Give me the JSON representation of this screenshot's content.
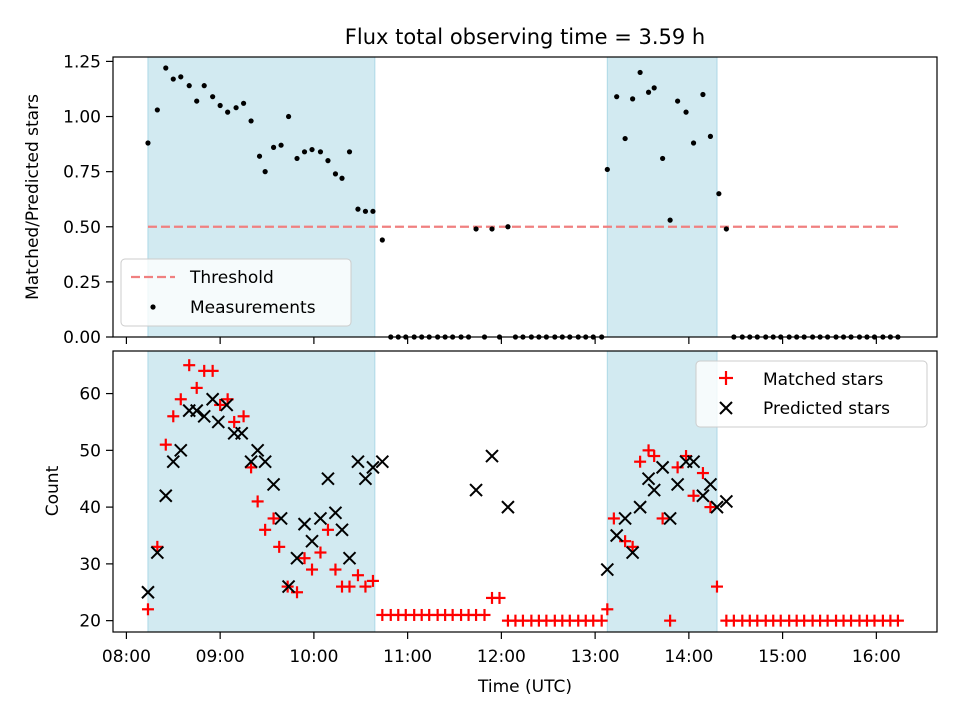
{
  "title": "Flux total observing time = 3.59 h",
  "x_axis": {
    "label": "Time (UTC)",
    "range_hours": [
      7.857,
      16.647
    ],
    "ticks": [
      {
        "value": 8,
        "label": "08:00"
      },
      {
        "value": 9,
        "label": "09:00"
      },
      {
        "value": 10,
        "label": "10:00"
      },
      {
        "value": 11,
        "label": "11:00"
      },
      {
        "value": 12,
        "label": "12:00"
      },
      {
        "value": 13,
        "label": "13:00"
      },
      {
        "value": 14,
        "label": "14:00"
      },
      {
        "value": 15,
        "label": "15:00"
      },
      {
        "value": 16,
        "label": "16:00"
      }
    ]
  },
  "colors": {
    "span": "#add8e6",
    "threshold": "#f08080",
    "measurement": "#000000",
    "matched": "#ff0000",
    "predicted": "#000000"
  },
  "chart_data": [
    {
      "type": "scatter",
      "ylabel": "Matched/Predicted stars",
      "ylim": [
        0,
        1.27
      ],
      "yticks": [
        "0.00",
        "0.25",
        "0.50",
        "0.75",
        "1.00",
        "1.25"
      ],
      "ytick_values": [
        0,
        0.25,
        0.5,
        0.75,
        1.0,
        1.25
      ],
      "shaded_spans": [
        [
          8.23,
          10.65
        ],
        [
          13.13,
          14.3
        ]
      ],
      "threshold": {
        "name": "Threshold",
        "value": 0.5,
        "x_range": [
          8.23,
          16.25
        ]
      },
      "legend": [
        "Threshold",
        "Measurements"
      ],
      "legend_position": "lower-left",
      "series": [
        {
          "name": "Measurements",
          "points": [
            [
              8.23,
              0.88
            ],
            [
              8.33,
              1.03
            ],
            [
              8.42,
              1.22
            ],
            [
              8.5,
              1.17
            ],
            [
              8.58,
              1.18
            ],
            [
              8.67,
              1.14
            ],
            [
              8.75,
              1.07
            ],
            [
              8.83,
              1.14
            ],
            [
              8.92,
              1.09
            ],
            [
              9.0,
              1.05
            ],
            [
              9.08,
              1.02
            ],
            [
              9.17,
              1.04
            ],
            [
              9.25,
              1.06
            ],
            [
              9.33,
              0.98
            ],
            [
              9.42,
              0.82
            ],
            [
              9.48,
              0.75
            ],
            [
              9.57,
              0.86
            ],
            [
              9.65,
              0.87
            ],
            [
              9.73,
              1.0
            ],
            [
              9.82,
              0.81
            ],
            [
              9.9,
              0.84
            ],
            [
              9.98,
              0.85
            ],
            [
              10.07,
              0.84
            ],
            [
              10.15,
              0.8
            ],
            [
              10.23,
              0.74
            ],
            [
              10.3,
              0.72
            ],
            [
              10.38,
              0.84
            ],
            [
              10.47,
              0.58
            ],
            [
              10.55,
              0.57
            ],
            [
              10.63,
              0.57
            ],
            [
              10.73,
              0.44
            ],
            [
              10.82,
              0.0
            ],
            [
              10.9,
              0.0
            ],
            [
              10.98,
              0.0
            ],
            [
              11.07,
              0.0
            ],
            [
              11.15,
              0.0
            ],
            [
              11.23,
              0.0
            ],
            [
              11.32,
              0.0
            ],
            [
              11.4,
              0.0
            ],
            [
              11.48,
              0.0
            ],
            [
              11.57,
              0.0
            ],
            [
              11.65,
              0.0
            ],
            [
              11.73,
              0.49
            ],
            [
              11.82,
              0.0
            ],
            [
              11.9,
              0.49
            ],
            [
              11.98,
              0.0
            ],
            [
              12.07,
              0.5
            ],
            [
              12.15,
              0.0
            ],
            [
              12.23,
              0.0
            ],
            [
              12.32,
              0.0
            ],
            [
              12.4,
              0.0
            ],
            [
              12.48,
              0.0
            ],
            [
              12.57,
              0.0
            ],
            [
              12.65,
              0.0
            ],
            [
              12.73,
              0.0
            ],
            [
              12.82,
              0.0
            ],
            [
              12.9,
              0.0
            ],
            [
              12.98,
              0.0
            ],
            [
              13.07,
              0.0
            ],
            [
              13.13,
              0.76
            ],
            [
              13.23,
              1.09
            ],
            [
              13.32,
              0.9
            ],
            [
              13.4,
              1.08
            ],
            [
              13.48,
              1.2
            ],
            [
              13.57,
              1.11
            ],
            [
              13.63,
              1.13
            ],
            [
              13.72,
              0.81
            ],
            [
              13.8,
              0.53
            ],
            [
              13.88,
              1.07
            ],
            [
              13.97,
              1.02
            ],
            [
              14.05,
              0.88
            ],
            [
              14.15,
              1.1
            ],
            [
              14.23,
              0.91
            ],
            [
              14.32,
              0.65
            ],
            [
              14.4,
              0.49
            ],
            [
              14.48,
              0.0
            ],
            [
              14.57,
              0.0
            ],
            [
              14.65,
              0.0
            ],
            [
              14.73,
              0.0
            ],
            [
              14.82,
              0.0
            ],
            [
              14.9,
              0.0
            ],
            [
              14.98,
              0.0
            ],
            [
              15.07,
              0.0
            ],
            [
              15.15,
              0.0
            ],
            [
              15.23,
              0.0
            ],
            [
              15.32,
              0.0
            ],
            [
              15.4,
              0.0
            ],
            [
              15.48,
              0.0
            ],
            [
              15.57,
              0.0
            ],
            [
              15.65,
              0.0
            ],
            [
              15.73,
              0.0
            ],
            [
              15.82,
              0.0
            ],
            [
              15.9,
              0.0
            ],
            [
              15.98,
              0.0
            ],
            [
              16.07,
              0.0
            ],
            [
              16.15,
              0.0
            ],
            [
              16.23,
              0.0
            ]
          ]
        }
      ]
    },
    {
      "type": "scatter",
      "ylabel": "Count",
      "ylim": [
        18,
        67.5
      ],
      "yticks": [
        "20",
        "30",
        "40",
        "50",
        "60"
      ],
      "ytick_values": [
        20,
        30,
        40,
        50,
        60
      ],
      "shaded_spans": [
        [
          8.23,
          10.65
        ],
        [
          13.13,
          14.3
        ]
      ],
      "legend": [
        "Matched stars",
        "Predicted stars"
      ],
      "legend_position": "upper-right",
      "series": [
        {
          "name": "Matched stars",
          "points": [
            [
              8.23,
              22
            ],
            [
              8.33,
              33
            ],
            [
              8.42,
              51
            ],
            [
              8.5,
              56
            ],
            [
              8.58,
              59
            ],
            [
              8.67,
              65
            ],
            [
              8.75,
              61
            ],
            [
              8.83,
              64
            ],
            [
              8.92,
              64
            ],
            [
              9.0,
              58
            ],
            [
              9.08,
              59
            ],
            [
              9.15,
              55
            ],
            [
              9.25,
              56
            ],
            [
              9.33,
              47
            ],
            [
              9.4,
              41
            ],
            [
              9.48,
              36
            ],
            [
              9.57,
              38
            ],
            [
              9.63,
              33
            ],
            [
              9.72,
              26
            ],
            [
              9.82,
              25
            ],
            [
              9.9,
              31
            ],
            [
              9.98,
              29
            ],
            [
              10.07,
              32
            ],
            [
              10.15,
              36
            ],
            [
              10.23,
              29
            ],
            [
              10.3,
              26
            ],
            [
              10.38,
              26
            ],
            [
              10.47,
              28
            ],
            [
              10.55,
              26
            ],
            [
              10.63,
              27
            ],
            [
              10.73,
              21
            ],
            [
              10.82,
              21
            ],
            [
              10.9,
              21
            ],
            [
              10.98,
              21
            ],
            [
              11.07,
              21
            ],
            [
              11.15,
              21
            ],
            [
              11.23,
              21
            ],
            [
              11.32,
              21
            ],
            [
              11.4,
              21
            ],
            [
              11.48,
              21
            ],
            [
              11.57,
              21
            ],
            [
              11.65,
              21
            ],
            [
              11.73,
              21
            ],
            [
              11.82,
              21
            ],
            [
              11.9,
              24
            ],
            [
              11.98,
              24
            ],
            [
              12.07,
              20
            ],
            [
              12.15,
              20
            ],
            [
              12.23,
              20
            ],
            [
              12.32,
              20
            ],
            [
              12.4,
              20
            ],
            [
              12.48,
              20
            ],
            [
              12.57,
              20
            ],
            [
              12.65,
              20
            ],
            [
              12.73,
              20
            ],
            [
              12.82,
              20
            ],
            [
              12.9,
              20
            ],
            [
              12.98,
              20
            ],
            [
              13.07,
              20
            ],
            [
              13.13,
              22
            ],
            [
              13.2,
              38
            ],
            [
              13.32,
              34
            ],
            [
              13.4,
              33
            ],
            [
              13.48,
              48
            ],
            [
              13.57,
              50
            ],
            [
              13.63,
              49
            ],
            [
              13.72,
              38
            ],
            [
              13.8,
              20
            ],
            [
              13.88,
              47
            ],
            [
              13.97,
              49
            ],
            [
              14.05,
              42
            ],
            [
              14.15,
              46
            ],
            [
              14.23,
              40
            ],
            [
              14.3,
              26
            ],
            [
              14.4,
              20
            ],
            [
              14.48,
              20
            ],
            [
              14.57,
              20
            ],
            [
              14.65,
              20
            ],
            [
              14.73,
              20
            ],
            [
              14.82,
              20
            ],
            [
              14.9,
              20
            ],
            [
              14.98,
              20
            ],
            [
              15.07,
              20
            ],
            [
              15.15,
              20
            ],
            [
              15.23,
              20
            ],
            [
              15.32,
              20
            ],
            [
              15.4,
              20
            ],
            [
              15.48,
              20
            ],
            [
              15.57,
              20
            ],
            [
              15.65,
              20
            ],
            [
              15.73,
              20
            ],
            [
              15.82,
              20
            ],
            [
              15.9,
              20
            ],
            [
              15.98,
              20
            ],
            [
              16.07,
              20
            ],
            [
              16.15,
              20
            ],
            [
              16.23,
              20
            ]
          ]
        },
        {
          "name": "Predicted stars",
          "points": [
            [
              8.23,
              25
            ],
            [
              8.33,
              32
            ],
            [
              8.42,
              42
            ],
            [
              8.5,
              48
            ],
            [
              8.58,
              50
            ],
            [
              8.67,
              57
            ],
            [
              8.75,
              57
            ],
            [
              8.83,
              56
            ],
            [
              8.92,
              59
            ],
            [
              8.98,
              55
            ],
            [
              9.07,
              58
            ],
            [
              9.15,
              53
            ],
            [
              9.23,
              53
            ],
            [
              9.33,
              48
            ],
            [
              9.4,
              50
            ],
            [
              9.48,
              48
            ],
            [
              9.57,
              44
            ],
            [
              9.65,
              38
            ],
            [
              9.73,
              26
            ],
            [
              9.82,
              31
            ],
            [
              9.9,
              37
            ],
            [
              9.98,
              34
            ],
            [
              10.07,
              38
            ],
            [
              10.15,
              45
            ],
            [
              10.23,
              39
            ],
            [
              10.3,
              36
            ],
            [
              10.38,
              31
            ],
            [
              10.47,
              48
            ],
            [
              10.55,
              45
            ],
            [
              10.63,
              47
            ],
            [
              10.73,
              48
            ],
            [
              11.73,
              43
            ],
            [
              11.9,
              49
            ],
            [
              12.07,
              40
            ],
            [
              13.13,
              29
            ],
            [
              13.23,
              35
            ],
            [
              13.32,
              38
            ],
            [
              13.4,
              32
            ],
            [
              13.48,
              40
            ],
            [
              13.57,
              45
            ],
            [
              13.63,
              43
            ],
            [
              13.72,
              47
            ],
            [
              13.8,
              38
            ],
            [
              13.88,
              44
            ],
            [
              13.97,
              48
            ],
            [
              14.05,
              48
            ],
            [
              14.15,
              42
            ],
            [
              14.23,
              44
            ],
            [
              14.3,
              40
            ],
            [
              14.4,
              41
            ]
          ]
        }
      ]
    }
  ]
}
